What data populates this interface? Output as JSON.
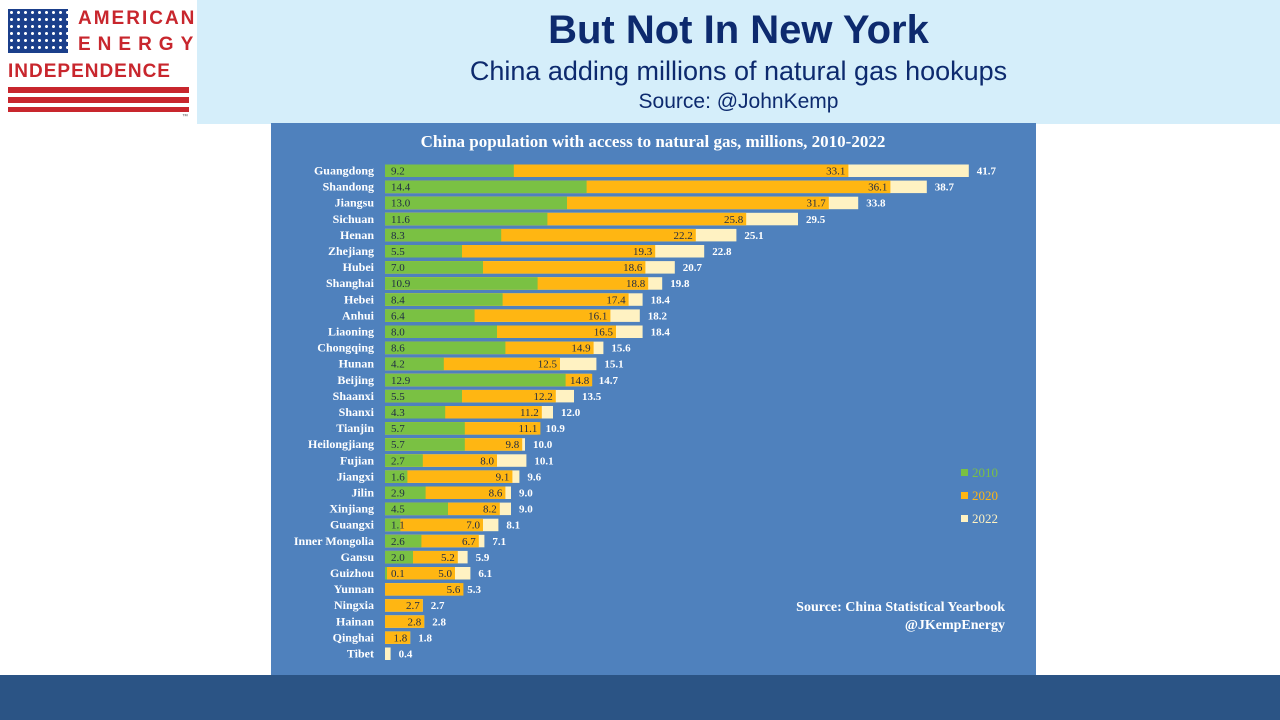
{
  "header": {
    "logo": {
      "line1": "AMERICAN",
      "line2": "ENERGY",
      "line3": "INDEPENDENCE",
      "tm": "™"
    },
    "title": "But Not In New York",
    "subtitle": "China adding millions of natural gas hookups",
    "source": "Source: @JohnKemp"
  },
  "colors": {
    "y2010": "#7ac143",
    "y2020": "#ffb612",
    "y2022": "#fff2c2",
    "panel": "#4f81bd"
  },
  "chart_data": {
    "type": "bar",
    "orientation": "horizontal",
    "title": "China population with access to natural gas, millions, 2010-2022",
    "categories": [
      "Guangdong",
      "Shandong",
      "Jiangsu",
      "Sichuan",
      "Henan",
      "Zhejiang",
      "Hubei",
      "Shanghai",
      "Hebei",
      "Anhui",
      "Liaoning",
      "Chongqing",
      "Hunan",
      "Beijing",
      "Shaanxi",
      "Shanxi",
      "Tianjin",
      "Heilongjiang",
      "Fujian",
      "Jiangxi",
      "Jilin",
      "Xinjiang",
      "Guangxi",
      "Inner Mongolia",
      "Gansu",
      "Guizhou",
      "Yunnan",
      "Ningxia",
      "Hainan",
      "Qinghai",
      "Tibet"
    ],
    "series": [
      {
        "name": "2010",
        "values": [
          9.2,
          14.4,
          13.0,
          11.6,
          8.3,
          5.5,
          7.0,
          10.9,
          8.4,
          6.4,
          8.0,
          8.6,
          4.2,
          12.9,
          5.5,
          4.3,
          5.7,
          5.7,
          2.7,
          1.6,
          2.9,
          4.5,
          1.1,
          2.6,
          2.0,
          0.1,
          null,
          null,
          null,
          null,
          null
        ]
      },
      {
        "name": "2020",
        "values": [
          33.1,
          36.1,
          31.7,
          25.8,
          22.2,
          19.3,
          18.6,
          18.8,
          17.4,
          16.1,
          16.5,
          14.9,
          12.5,
          14.8,
          12.2,
          11.2,
          11.1,
          9.8,
          8.0,
          9.1,
          8.6,
          8.2,
          7.0,
          6.7,
          5.2,
          5.0,
          5.6,
          2.7,
          2.8,
          1.8,
          null
        ]
      },
      {
        "name": "2022",
        "values": [
          41.7,
          38.7,
          33.8,
          29.5,
          25.1,
          22.8,
          20.7,
          19.8,
          18.4,
          18.2,
          18.4,
          15.6,
          15.1,
          14.7,
          13.5,
          12.0,
          10.9,
          10.0,
          10.1,
          9.6,
          9.0,
          9.0,
          8.1,
          7.1,
          5.9,
          6.1,
          5.3,
          2.7,
          2.8,
          1.8,
          0.4
        ]
      }
    ],
    "xlim": [
      0,
      42
    ],
    "legend": {
      "position": "right",
      "labels": [
        "2010",
        "2020",
        "2022"
      ]
    },
    "source_note": [
      "Source: China Statistical Yearbook",
      "@JKempEnergy"
    ]
  }
}
